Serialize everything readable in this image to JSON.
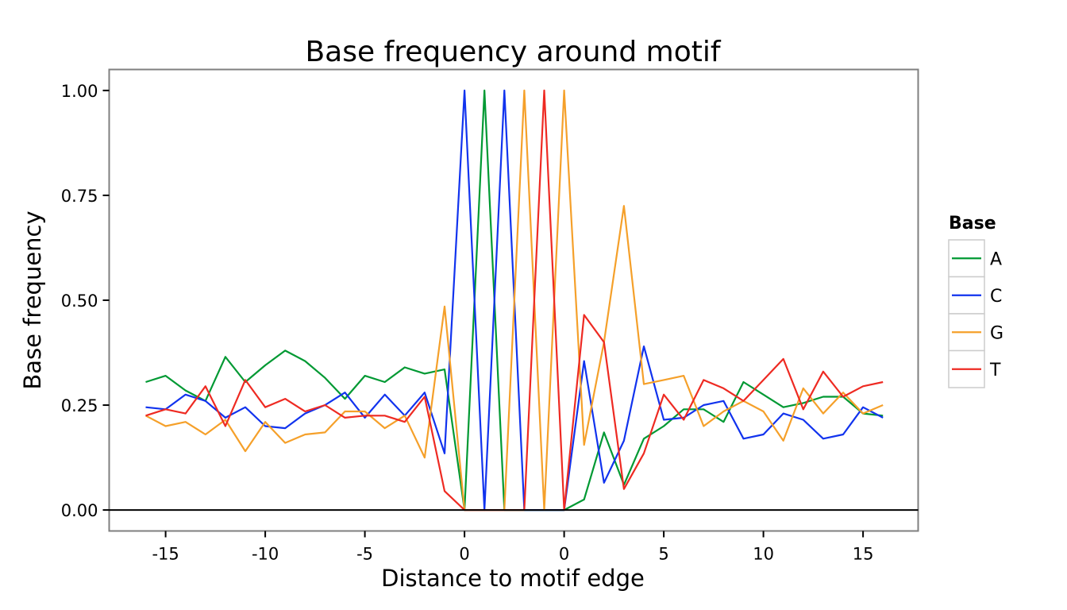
{
  "chart_data": {
    "type": "line",
    "title": "Base frequency around motif",
    "xlabel": "Distance to motif edge",
    "ylabel": "Base frequency",
    "x_tick_labels": [
      "-15",
      "-10",
      "-5",
      "0",
      "0",
      "5",
      "10",
      "15"
    ],
    "y_tick_labels": [
      "0.00",
      "0.25",
      "0.50",
      "0.75",
      "1.00"
    ],
    "y_ticks": [
      0,
      0.25,
      0.5,
      0.75,
      1.0
    ],
    "ylim": [
      -0.05,
      1.05
    ],
    "grid": false,
    "legend_title": "Base",
    "legend_position": "right",
    "series": [
      {
        "name": "A",
        "color": "#009933",
        "values": [
          0.305,
          0.32,
          0.285,
          0.26,
          0.365,
          0.305,
          0.345,
          0.38,
          0.355,
          0.315,
          0.265,
          0.32,
          0.305,
          0.34,
          0.325,
          0.335,
          0.0,
          1.0,
          0.0,
          0.0,
          0.0,
          0.0,
          0.025,
          0.185,
          0.06,
          0.17,
          0.2,
          0.24,
          0.24,
          0.21,
          0.305,
          0.275,
          0.245,
          0.255,
          0.27,
          0.27,
          0.23,
          0.225
        ]
      },
      {
        "name": "C",
        "color": "#1133ee",
        "values": [
          0.245,
          0.24,
          0.275,
          0.26,
          0.22,
          0.245,
          0.2,
          0.195,
          0.23,
          0.25,
          0.28,
          0.22,
          0.275,
          0.225,
          0.28,
          0.135,
          1.0,
          0.0,
          1.0,
          0.0,
          0.0,
          0.0,
          0.355,
          0.065,
          0.165,
          0.39,
          0.215,
          0.22,
          0.25,
          0.26,
          0.17,
          0.18,
          0.23,
          0.215,
          0.17,
          0.18,
          0.245,
          0.22
        ]
      },
      {
        "name": "G",
        "color": "#f5a02a",
        "values": [
          0.225,
          0.2,
          0.21,
          0.18,
          0.215,
          0.14,
          0.21,
          0.16,
          0.18,
          0.185,
          0.235,
          0.235,
          0.195,
          0.225,
          0.125,
          0.485,
          0.0,
          0.0,
          0.0,
          1.0,
          0.0,
          1.0,
          0.155,
          0.4,
          0.725,
          0.3,
          0.31,
          0.32,
          0.2,
          0.235,
          0.26,
          0.235,
          0.165,
          0.29,
          0.23,
          0.28,
          0.23,
          0.25
        ]
      },
      {
        "name": "T",
        "color": "#ee2a22",
        "values": [
          0.225,
          0.24,
          0.23,
          0.295,
          0.2,
          0.31,
          0.245,
          0.265,
          0.235,
          0.25,
          0.22,
          0.225,
          0.225,
          0.21,
          0.27,
          0.045,
          0.0,
          0.0,
          0.0,
          0.0,
          1.0,
          0.0,
          0.465,
          0.4,
          0.05,
          0.135,
          0.275,
          0.215,
          0.31,
          0.29,
          0.26,
          0.31,
          0.36,
          0.24,
          0.33,
          0.27,
          0.295,
          0.305
        ]
      }
    ]
  }
}
